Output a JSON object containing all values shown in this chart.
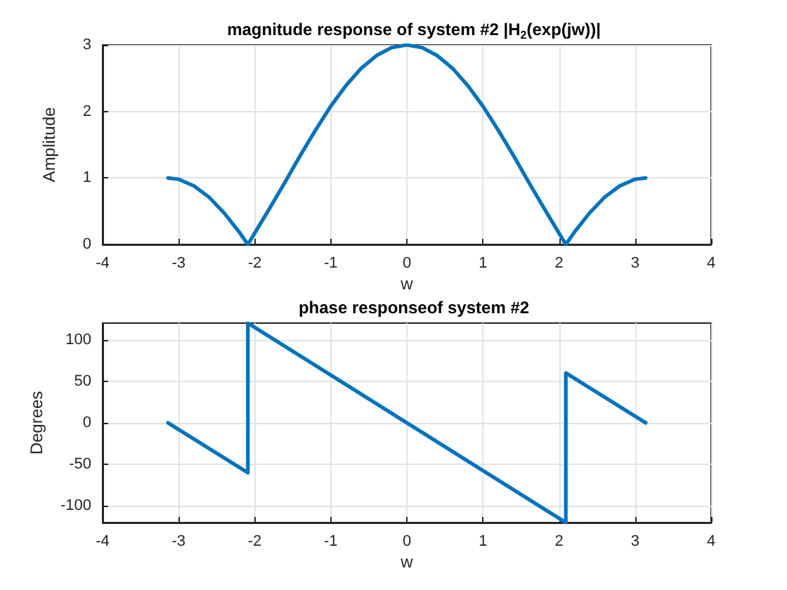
{
  "chart_data": [
    {
      "type": "line",
      "title": "magnitude response of system #2 |H$_{2}$(exp(jw))|",
      "xlabel": "w",
      "ylabel": "Amplitude",
      "x": [
        -3.14,
        -3.0,
        -2.8,
        -2.6,
        -2.4,
        -2.2,
        -2.09,
        -2.0,
        -1.8,
        -1.6,
        -1.4,
        -1.2,
        -1.0,
        -0.8,
        -0.6,
        -0.4,
        -0.2,
        0,
        0.2,
        0.4,
        0.6,
        0.8,
        1.0,
        1.2,
        1.4,
        1.6,
        1.8,
        2.0,
        2.09,
        2.2,
        2.4,
        2.6,
        2.8,
        3.0,
        3.14
      ],
      "values": [
        1.0,
        0.98,
        0.88,
        0.71,
        0.47,
        0.18,
        0,
        0.17,
        0.55,
        0.94,
        1.34,
        1.72,
        2.08,
        2.39,
        2.65,
        2.84,
        2.96,
        3.0,
        2.96,
        2.84,
        2.65,
        2.39,
        2.08,
        1.72,
        1.34,
        0.94,
        0.55,
        0.17,
        0,
        0.18,
        0.47,
        0.71,
        0.88,
        0.98,
        1.0
      ],
      "color": "#0072bd",
      "xlim": [
        -4,
        4
      ],
      "xticks": [
        -4,
        -3,
        -2,
        -1,
        0,
        1,
        2,
        3,
        4
      ],
      "ylim": [
        0,
        3
      ],
      "yticks": [
        0,
        1,
        2,
        3
      ],
      "grid": true,
      "marker": "none",
      "line_style": "solid"
    },
    {
      "type": "line",
      "title": "phase responseof system #2",
      "xlabel": "w",
      "ylabel": "Degrees",
      "x": [
        -3.14,
        -2.09,
        -2.09,
        0,
        2.09,
        2.09,
        3.14
      ],
      "values": [
        0,
        -60,
        120,
        0,
        -120,
        60,
        0
      ],
      "color": "#0072bd",
      "xlim": [
        -4,
        4
      ],
      "xticks": [
        -4,
        -3,
        -2,
        -1,
        0,
        1,
        2,
        3,
        4
      ],
      "ylim": [
        -120,
        120
      ],
      "yticks": [
        -100,
        -50,
        0,
        50,
        100
      ],
      "grid": true,
      "marker": "none",
      "line_style": "solid"
    }
  ]
}
